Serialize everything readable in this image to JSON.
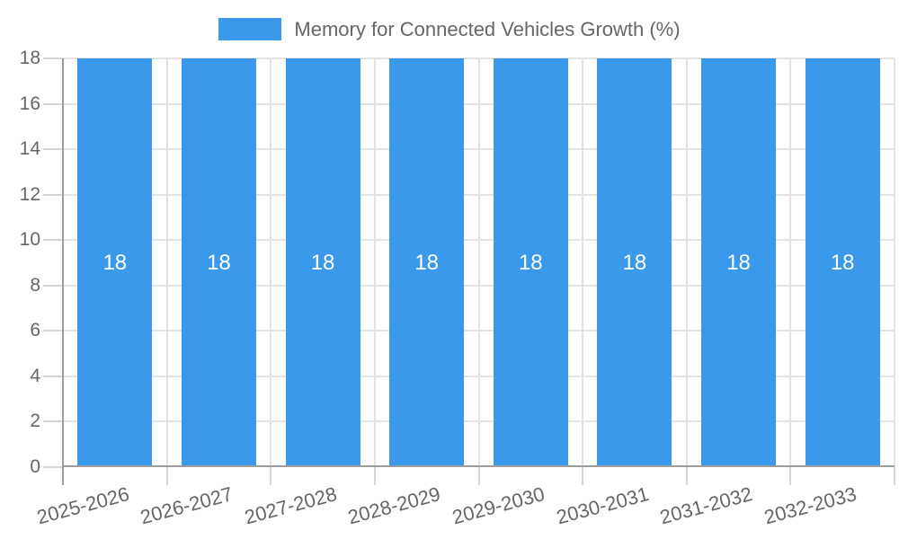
{
  "chart_data": {
    "type": "bar",
    "title": "",
    "legend_label": "Memory for Connected Vehicles Growth (%)",
    "legend_position": "top",
    "categories": [
      "2025-2026",
      "2026-2027",
      "2027-2028",
      "2028-2029",
      "2029-2030",
      "2030-2031",
      "2031-2032",
      "2032-2033"
    ],
    "values": [
      18,
      18,
      18,
      18,
      18,
      18,
      18,
      18
    ],
    "data_labels": [
      "18",
      "18",
      "18",
      "18",
      "18",
      "18",
      "18",
      "18"
    ],
    "xlabel": "",
    "ylabel": "",
    "ylim": [
      0,
      18
    ],
    "yticks": [
      0,
      2,
      4,
      6,
      8,
      10,
      12,
      14,
      16,
      18
    ],
    "grid": true,
    "x_label_rotation_deg": -15,
    "colors": {
      "bar": "#3b99ec",
      "bar_label_text": "#ffffff",
      "gridline": "#e3e3e3",
      "axis_line": "#9c9c9c",
      "tick_mark": "#d6d6d6",
      "tick_label_text": "#666666",
      "legend_text": "#666666",
      "background": "#ffffff"
    }
  }
}
